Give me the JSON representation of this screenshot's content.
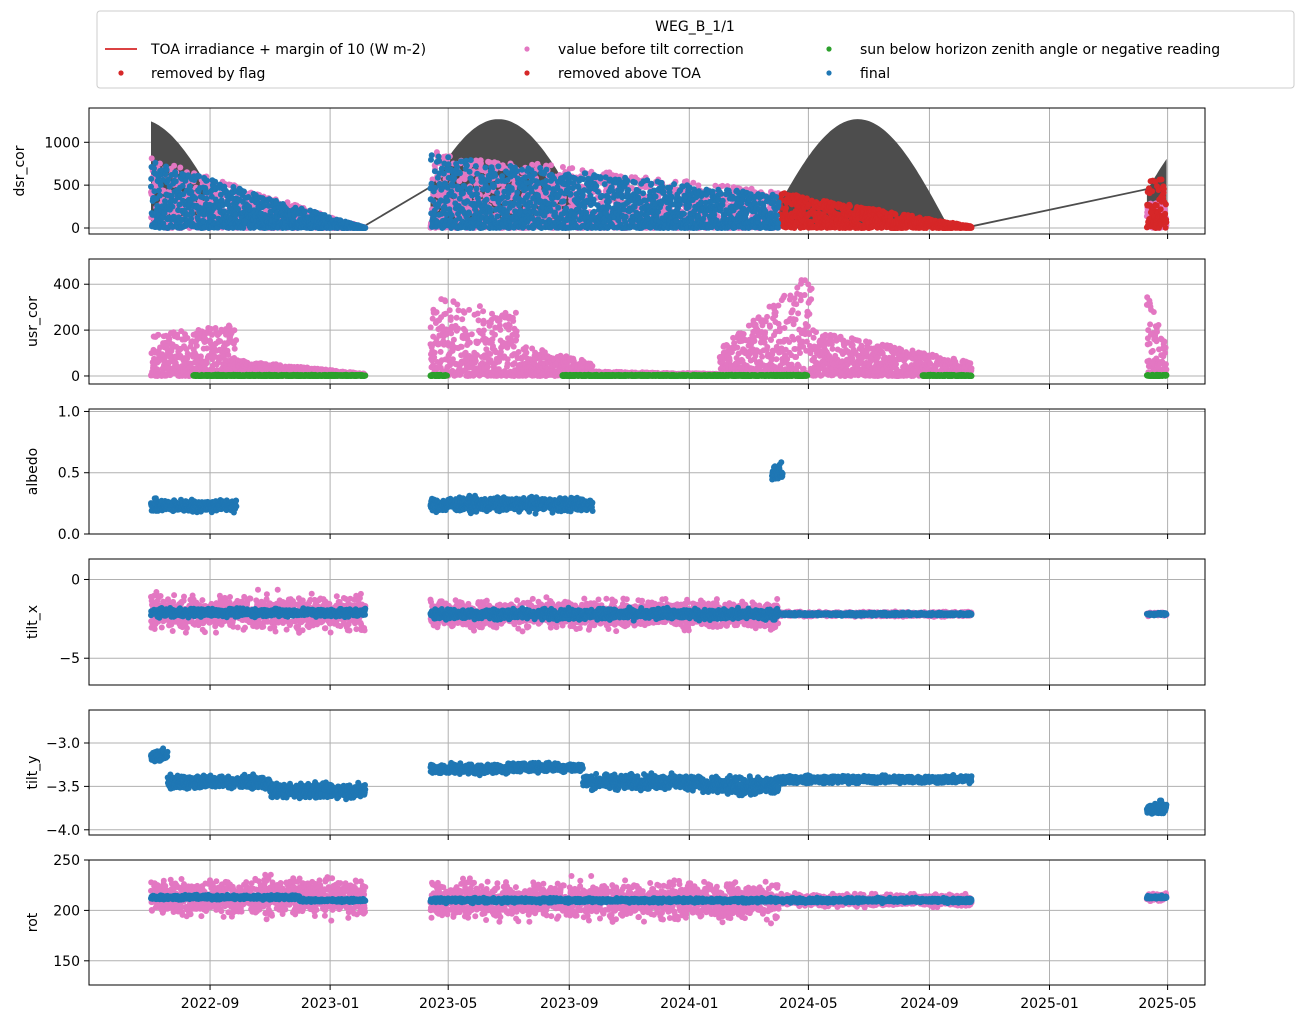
{
  "legend": {
    "title": "WEG_B_1/1",
    "placement": "top-center (above plots)",
    "entries": [
      {
        "label": "TOA irradiance + margin of 10 (W m-2)",
        "marker": "line",
        "color": "#d62728"
      },
      {
        "label": "value before tilt correction",
        "marker": "dot",
        "color": "#e377c2"
      },
      {
        "label": "sun below horizon zenith angle or negative reading",
        "marker": "dot",
        "color": "#2ca02c"
      },
      {
        "label": "removed by flag",
        "marker": "dot",
        "color": "#d62728"
      },
      {
        "label": "removed above TOA",
        "marker": "dot",
        "color": "#d62728"
      },
      {
        "label": "final",
        "marker": "dot",
        "color": "#1f77b4"
      }
    ]
  },
  "colors": {
    "toa_fill": "#4d4d4d",
    "pink": "#e377c2",
    "green": "#2ca02c",
    "red": "#d62728",
    "blue": "#1f77b4",
    "grid": "#b0b0b0"
  },
  "chart_data": [
    {
      "type": "scatter",
      "ylabel": "dsr_cor",
      "grid": true,
      "xlim": [
        "2022-05-01",
        "2025-06-08"
      ],
      "ylim": [
        -70,
        1400
      ],
      "yticks": [
        0,
        500,
        1000
      ],
      "ytick_labels": [
        "0",
        "500",
        "1000"
      ],
      "x_axis_type": "date",
      "xticks_shown": false,
      "toa_band": [
        {
          "start": "2022-07-03",
          "end": "2023-02-06",
          "peak_date": "2022-06-21",
          "peak": 1270,
          "floor": 30
        },
        {
          "start": "2023-04-13",
          "end": "2024-10-14",
          "peak_date": "2023-06-21",
          "peak": 1270,
          "floor": 30
        },
        {
          "start": "2025-04-10",
          "end": "2025-04-30",
          "peak_date": "2025-06-21",
          "peak": 1270,
          "floor": 30
        }
      ],
      "toa_line": [
        [
          "2023-02-06",
          30
        ],
        [
          "2023-04-13",
          480
        ],
        [
          "2024-10-14",
          20
        ],
        [
          "2025-04-25",
          490
        ]
      ],
      "series": [
        {
          "color": "pink",
          "segments": [
            {
              "start": "2022-07-03",
              "end": "2023-02-06",
              "max_start": 820,
              "max_end": 5
            },
            {
              "start": "2023-04-13",
              "end": "2024-04-01",
              "max_start": 900,
              "max_end": 420
            },
            {
              "start": "2025-04-10",
              "end": "2025-04-30",
              "max_start": 300,
              "max_end": 300
            }
          ]
        },
        {
          "color": "red",
          "segments": [
            {
              "start": "2024-04-01",
              "end": "2024-10-14",
              "max_start": 420,
              "max_end": 20
            },
            {
              "start": "2025-04-10",
              "end": "2025-04-30",
              "max_start": 600,
              "max_end": 600
            }
          ]
        },
        {
          "color": "blue",
          "segments": [
            {
              "start": "2022-07-03",
              "end": "2023-02-06",
              "max_start": 780,
              "max_end": 5
            },
            {
              "start": "2023-04-13",
              "end": "2024-04-01",
              "max_start": 850,
              "max_end": 380
            }
          ]
        }
      ]
    },
    {
      "type": "scatter",
      "ylabel": "usr_cor",
      "grid": true,
      "xlim": [
        "2022-05-01",
        "2025-06-08"
      ],
      "ylim": [
        -35,
        510
      ],
      "yticks": [
        0,
        200,
        400
      ],
      "ytick_labels": [
        "0",
        "200",
        "400"
      ],
      "x_axis_type": "date",
      "xticks_shown": false,
      "series": [
        {
          "color": "pink",
          "segments": [
            {
              "start": "2022-07-03",
              "end": "2022-09-28",
              "max_start": 180,
              "max_end": 230
            },
            {
              "start": "2022-09-28",
              "end": "2023-02-06",
              "max_start": 70,
              "max_end": 10
            },
            {
              "start": "2023-04-13",
              "end": "2023-07-10",
              "max_start": 350,
              "max_end": 280
            },
            {
              "start": "2023-07-10",
              "end": "2023-09-25",
              "max_start": 140,
              "max_end": 60
            },
            {
              "start": "2023-09-25",
              "end": "2024-02-01",
              "max_start": 20,
              "max_end": 10
            },
            {
              "start": "2024-02-01",
              "end": "2024-05-05",
              "max_start": 120,
              "max_end": 460
            },
            {
              "start": "2024-05-05",
              "end": "2024-10-14",
              "max_start": 200,
              "max_end": 60
            },
            {
              "start": "2025-04-10",
              "end": "2025-04-30",
              "max_start": 360,
              "max_end": 140
            }
          ]
        },
        {
          "color": "green",
          "segments": [
            {
              "start": "2022-08-15",
              "end": "2023-02-06",
              "max_start": 5,
              "max_end": 5
            },
            {
              "start": "2023-04-13",
              "end": "2023-04-30",
              "max_start": 5,
              "max_end": 5
            },
            {
              "start": "2023-08-25",
              "end": "2024-04-30",
              "max_start": 5,
              "max_end": 5
            },
            {
              "start": "2024-08-25",
              "end": "2024-10-14",
              "max_start": 5,
              "max_end": 5
            },
            {
              "start": "2025-04-10",
              "end": "2025-04-30",
              "max_start": 5,
              "max_end": 5
            }
          ]
        }
      ]
    },
    {
      "type": "scatter",
      "ylabel": "albedo",
      "grid": true,
      "xlim": [
        "2022-05-01",
        "2025-06-08"
      ],
      "ylim": [
        0.0,
        1.02
      ],
      "yticks": [
        0.0,
        0.5,
        1.0
      ],
      "ytick_labels": [
        "0.0",
        "0.5",
        "1.0"
      ],
      "x_axis_type": "date",
      "xticks_shown": false,
      "series": [
        {
          "color": "blue",
          "segments": [
            {
              "start": "2022-07-03",
              "end": "2022-09-28",
              "center": 0.23,
              "spread": 0.07
            },
            {
              "start": "2023-04-13",
              "end": "2023-09-25",
              "center": 0.24,
              "spread": 0.08
            },
            {
              "start": "2024-03-25",
              "end": "2024-04-05",
              "center": 0.5,
              "spread": 0.1
            }
          ]
        }
      ]
    },
    {
      "type": "scatter",
      "ylabel": "tilt_x",
      "grid": true,
      "xlim": [
        "2022-05-01",
        "2025-06-08"
      ],
      "ylim": [
        -6.7,
        1.3
      ],
      "yticks": [
        0,
        -5
      ],
      "ytick_labels": [
        "0",
        "−5"
      ],
      "x_axis_type": "date",
      "xticks_shown": false,
      "series": [
        {
          "color": "pink",
          "segments": [
            {
              "start": "2022-07-03",
              "end": "2023-02-06",
              "center": -2.1,
              "spread": 1.5
            },
            {
              "start": "2023-04-13",
              "end": "2024-04-01",
              "center": -2.2,
              "spread": 1.2
            },
            {
              "start": "2024-04-01",
              "end": "2024-10-14",
              "center": -2.2,
              "spread": 0.2
            },
            {
              "start": "2025-04-10",
              "end": "2025-04-30",
              "center": -2.2,
              "spread": 0.15
            }
          ]
        },
        {
          "color": "blue",
          "segments": [
            {
              "start": "2022-07-03",
              "end": "2023-02-06",
              "center": -2.1,
              "spread": 0.35
            },
            {
              "start": "2023-04-13",
              "end": "2024-04-01",
              "center": -2.2,
              "spread": 0.45
            },
            {
              "start": "2024-04-01",
              "end": "2024-10-14",
              "center": -2.2,
              "spread": 0.12
            },
            {
              "start": "2025-04-10",
              "end": "2025-04-30",
              "center": -2.2,
              "spread": 0.1
            }
          ]
        }
      ]
    },
    {
      "type": "scatter",
      "ylabel": "tilt_y",
      "grid": true,
      "xlim": [
        "2022-05-01",
        "2025-06-08"
      ],
      "ylim": [
        -4.06,
        -2.62
      ],
      "yticks": [
        -3.0,
        -3.5,
        -4.0
      ],
      "ytick_labels": [
        "−3.0",
        "−3.5",
        "−4.0"
      ],
      "x_axis_type": "date",
      "xticks_shown": false,
      "series": [
        {
          "color": "blue",
          "segments": [
            {
              "start": "2022-07-03",
              "end": "2022-07-20",
              "center": -3.15,
              "spread": 0.12
            },
            {
              "start": "2022-07-20",
              "end": "2022-11-01",
              "center": -3.45,
              "spread": 0.1
            },
            {
              "start": "2022-11-01",
              "end": "2023-02-06",
              "center": -3.55,
              "spread": 0.12
            },
            {
              "start": "2023-04-13",
              "end": "2023-07-01",
              "center": -3.3,
              "spread": 0.08
            },
            {
              "start": "2023-07-01",
              "end": "2023-09-15",
              "center": -3.28,
              "spread": 0.07
            },
            {
              "start": "2023-09-15",
              "end": "2024-01-15",
              "center": -3.45,
              "spread": 0.12
            },
            {
              "start": "2024-01-15",
              "end": "2024-04-01",
              "center": -3.5,
              "spread": 0.14
            },
            {
              "start": "2024-04-01",
              "end": "2024-10-14",
              "center": -3.42,
              "spread": 0.06
            },
            {
              "start": "2025-04-10",
              "end": "2025-04-30",
              "center": -3.75,
              "spread": 0.1
            }
          ]
        }
      ]
    },
    {
      "type": "scatter",
      "ylabel": "rot",
      "grid": true,
      "xlim": [
        "2022-05-01",
        "2025-06-08"
      ],
      "ylim": [
        126,
        250
      ],
      "yticks": [
        150,
        200,
        250
      ],
      "ytick_labels": [
        "150",
        "200",
        "250"
      ],
      "x_axis_type": "date",
      "xticks_shown": true,
      "xticks": [
        "2022-09-01",
        "2023-01-01",
        "2023-05-01",
        "2023-09-01",
        "2024-01-01",
        "2024-05-01",
        "2024-09-01",
        "2025-01-01",
        "2025-05-01"
      ],
      "xtick_labels": [
        "2022-09",
        "2023-01",
        "2023-05",
        "2023-09",
        "2024-01",
        "2024-05",
        "2024-09",
        "2025-01",
        "2025-05"
      ],
      "series": [
        {
          "color": "pink",
          "segments": [
            {
              "start": "2022-07-03",
              "end": "2023-02-06",
              "center": 213,
              "spread": 25
            },
            {
              "start": "2023-04-13",
              "end": "2024-04-01",
              "center": 210,
              "spread": 25
            },
            {
              "start": "2024-04-01",
              "end": "2024-10-14",
              "center": 210,
              "spread": 8
            },
            {
              "start": "2025-04-10",
              "end": "2025-04-30",
              "center": 213,
              "spread": 6
            }
          ]
        },
        {
          "color": "blue",
          "segments": [
            {
              "start": "2022-07-03",
              "end": "2022-12-01",
              "center": 213,
              "spread": 3
            },
            {
              "start": "2022-12-01",
              "end": "2023-02-06",
              "center": 210,
              "spread": 2
            },
            {
              "start": "2023-04-13",
              "end": "2024-10-14",
              "center": 210,
              "spread": 3
            },
            {
              "start": "2025-04-10",
              "end": "2025-04-30",
              "center": 213,
              "spread": 2
            }
          ]
        }
      ]
    }
  ]
}
